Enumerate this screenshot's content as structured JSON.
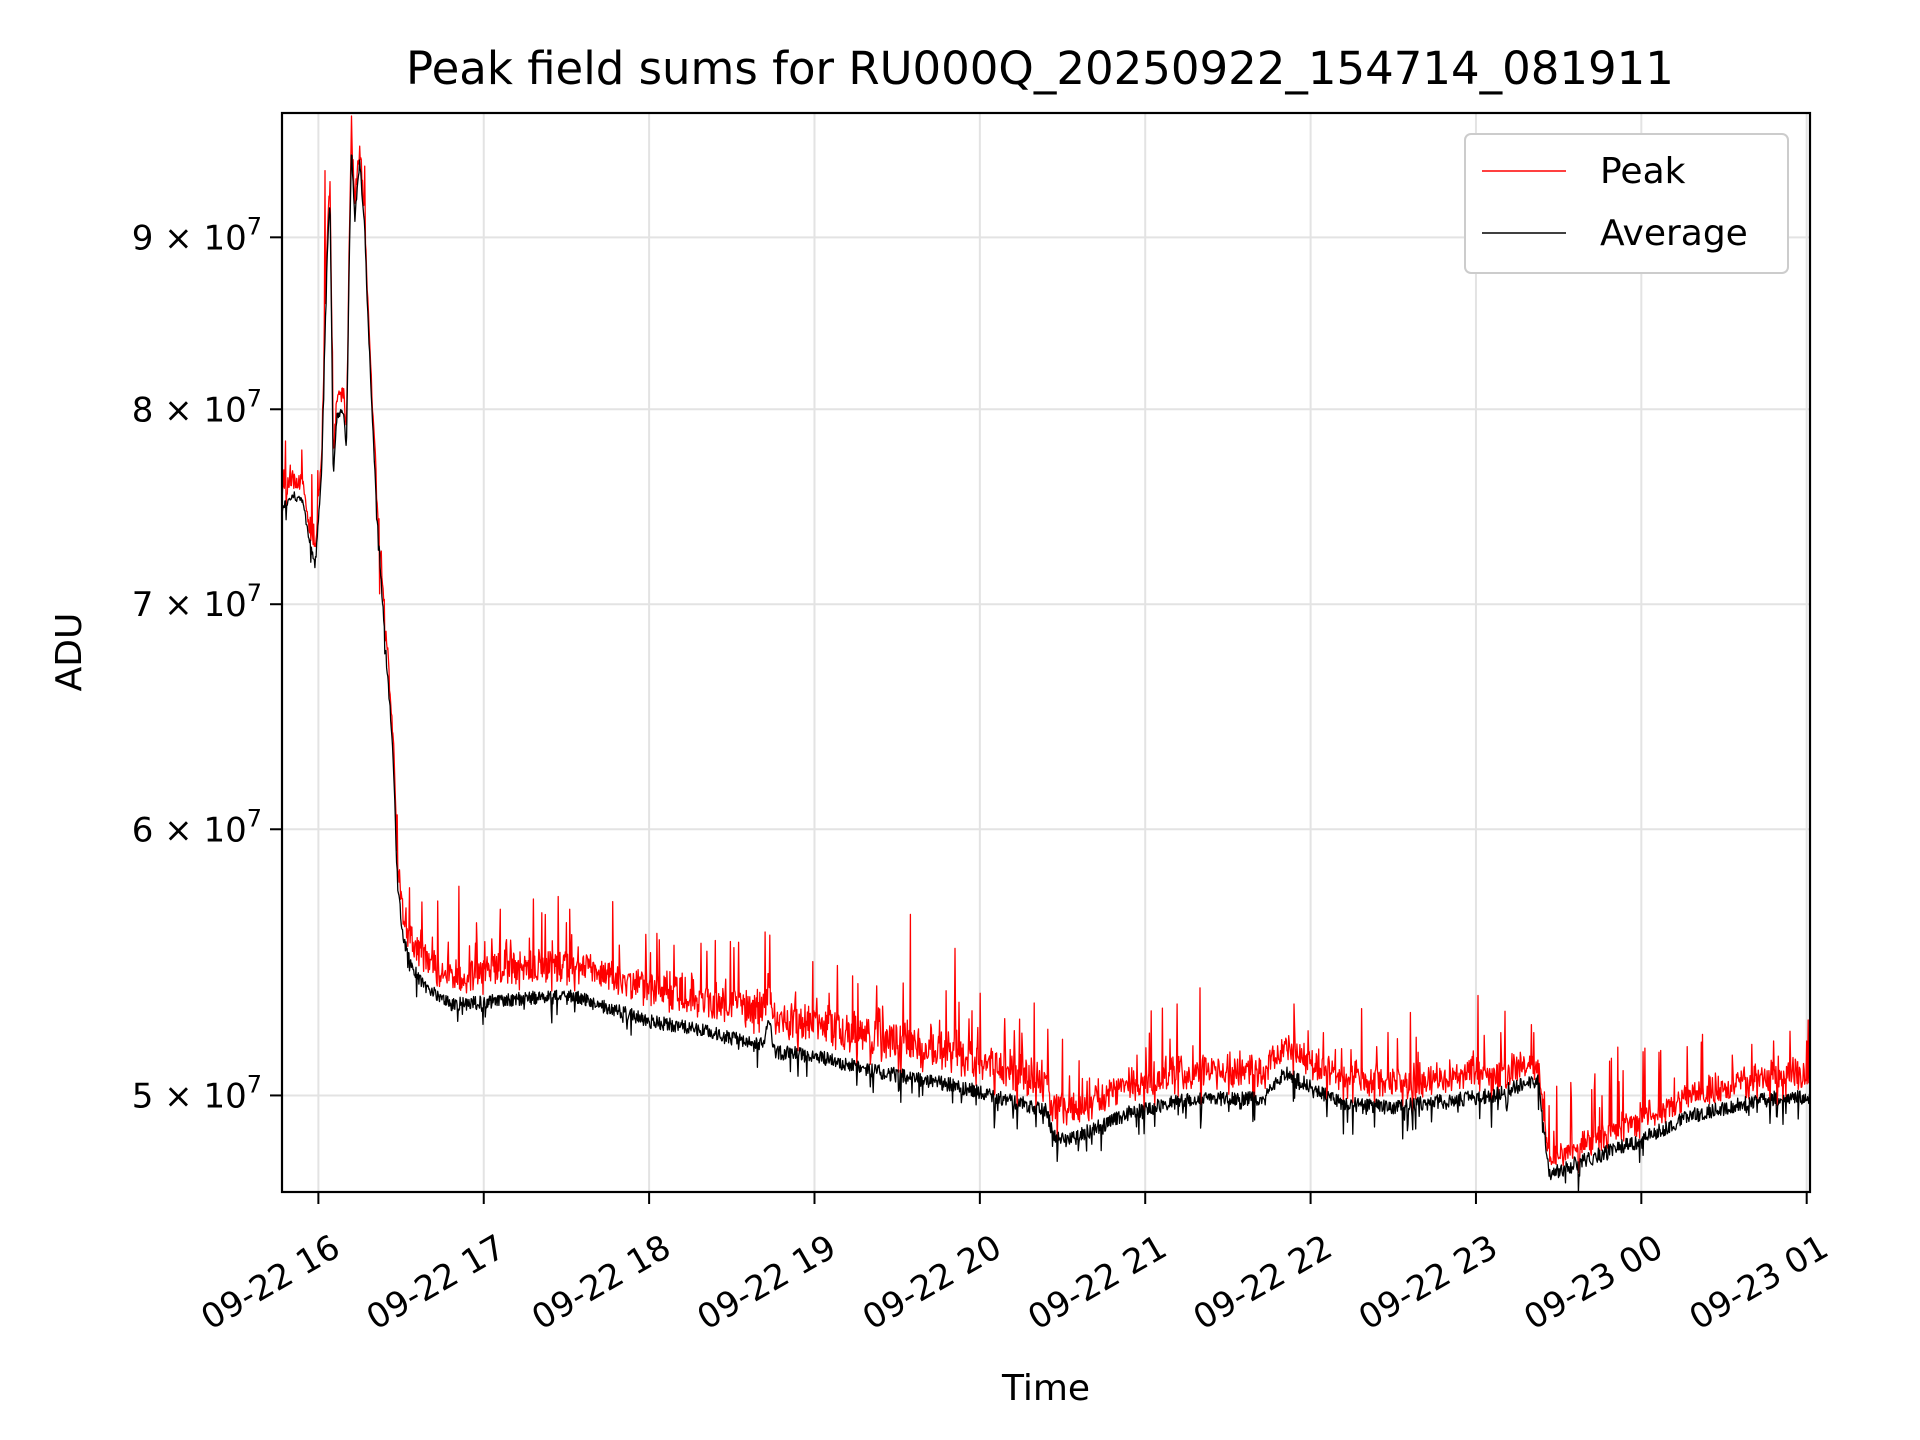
{
  "chart_data": {
    "type": "line",
    "title": "Peak field sums for RU000Q_20250922_154714_081911",
    "xlabel": "Time",
    "ylabel": "ADU",
    "yscale": "log",
    "ylim": [
      46800000,
      98000000
    ],
    "xlim_hours": [
      15.78,
      25.02
    ],
    "grid": true,
    "legend_position": "top-right",
    "x_ticks": [
      {
        "hour": 16,
        "label": "09-22 16"
      },
      {
        "hour": 17,
        "label": "09-22 17"
      },
      {
        "hour": 18,
        "label": "09-22 18"
      },
      {
        "hour": 19,
        "label": "09-22 19"
      },
      {
        "hour": 20,
        "label": "09-22 20"
      },
      {
        "hour": 21,
        "label": "09-22 21"
      },
      {
        "hour": 22,
        "label": "09-22 22"
      },
      {
        "hour": 23,
        "label": "09-22 23"
      },
      {
        "hour": 24,
        "label": "09-23 00"
      },
      {
        "hour": 25,
        "label": "09-23 01"
      }
    ],
    "y_ticks": [
      {
        "value": 50000000,
        "mantissa": "5",
        "exponent": "7"
      },
      {
        "value": 60000000,
        "mantissa": "6",
        "exponent": "7"
      },
      {
        "value": 70000000,
        "mantissa": "7",
        "exponent": "7"
      },
      {
        "value": 80000000,
        "mantissa": "8",
        "exponent": "7"
      },
      {
        "value": 90000000,
        "mantissa": "9",
        "exponent": "7"
      }
    ],
    "series": [
      {
        "name": "Peak",
        "color": "#ff0000",
        "offset": [
          [
            15.78,
            900000
          ],
          [
            15.9,
            800000
          ],
          [
            16.2,
            1000000
          ],
          [
            16.5,
            900000
          ],
          [
            17.0,
            1100000
          ],
          [
            18.0,
            1200000
          ],
          [
            19.0,
            1200000
          ],
          [
            20.0,
            1100000
          ],
          [
            20.5,
            1000000
          ],
          [
            21.0,
            1000000
          ],
          [
            22.0,
            900000
          ],
          [
            23.0,
            800000
          ],
          [
            23.45,
            500000
          ],
          [
            24.0,
            700000
          ],
          [
            25.02,
            800000
          ]
        ],
        "spikes": [
          [
            15.83,
            77000000
          ],
          [
            15.9,
            77800000
          ],
          [
            15.96,
            76500000
          ],
          [
            16.04,
            94200000
          ],
          [
            16.07,
            93500000
          ],
          [
            16.2,
            97800000
          ],
          [
            16.25,
            95800000
          ],
          [
            16.28,
            94500000
          ],
          [
            16.37,
            70500000
          ],
          [
            16.45,
            64100000
          ],
          [
            16.5,
            57500000
          ],
          [
            16.62,
            56000000
          ],
          [
            16.85,
            57700000
          ],
          [
            16.95,
            55500000
          ],
          [
            17.1,
            56800000
          ],
          [
            17.3,
            57200000
          ],
          [
            17.45,
            57300000
          ],
          [
            17.52,
            56800000
          ],
          [
            17.78,
            57100000
          ],
          [
            18.4,
            55600000
          ],
          [
            18.73,
            55800000
          ],
          [
            18.99,
            54800000
          ],
          [
            19.58,
            56600000
          ],
          [
            19.85,
            55300000
          ],
          [
            20.15,
            52700000
          ],
          [
            20.6,
            51200000
          ],
          [
            20.95,
            51400000
          ],
          [
            21.35,
            51400000
          ],
          [
            21.75,
            51400000
          ],
          [
            21.85,
            52000000
          ],
          [
            22.15,
            51600000
          ],
          [
            22.4,
            51700000
          ],
          [
            22.65,
            51500000
          ],
          [
            23.05,
            52100000
          ],
          [
            23.15,
            52200000
          ],
          [
            23.35,
            52200000
          ],
          [
            23.7,
            50200000
          ],
          [
            24.2,
            50600000
          ],
          [
            24.55,
            51400000
          ],
          [
            24.8,
            51900000
          ],
          [
            25.0,
            51900000
          ]
        ]
      },
      {
        "name": "Average",
        "color": "#000000",
        "base": [
          [
            15.78,
            74800000
          ],
          [
            15.85,
            75400000
          ],
          [
            15.9,
            75200000
          ],
          [
            15.95,
            73000000
          ],
          [
            15.98,
            71800000
          ],
          [
            16.02,
            76500000
          ],
          [
            16.05,
            88000000
          ],
          [
            16.07,
            92500000
          ],
          [
            16.09,
            76500000
          ],
          [
            16.11,
            79500000
          ],
          [
            16.15,
            80000000
          ],
          [
            16.17,
            78000000
          ],
          [
            16.19,
            90500000
          ],
          [
            16.2,
            95800000
          ],
          [
            16.22,
            91000000
          ],
          [
            16.25,
            94800000
          ],
          [
            16.28,
            90500000
          ],
          [
            16.3,
            85000000
          ],
          [
            16.35,
            75000000
          ],
          [
            16.4,
            68500000
          ],
          [
            16.45,
            63500000
          ],
          [
            16.48,
            57500000
          ],
          [
            16.52,
            55500000
          ],
          [
            16.6,
            54200000
          ],
          [
            16.7,
            53600000
          ],
          [
            16.8,
            53200000
          ],
          [
            17.0,
            53300000
          ],
          [
            17.2,
            53400000
          ],
          [
            17.5,
            53600000
          ],
          [
            17.8,
            53000000
          ],
          [
            18.0,
            52600000
          ],
          [
            18.3,
            52300000
          ],
          [
            18.5,
            52000000
          ],
          [
            18.7,
            51800000
          ],
          [
            18.72,
            52800000
          ],
          [
            18.76,
            51500000
          ],
          [
            19.0,
            51400000
          ],
          [
            19.3,
            50900000
          ],
          [
            19.6,
            50600000
          ],
          [
            19.8,
            50400000
          ],
          [
            20.0,
            50100000
          ],
          [
            20.2,
            49800000
          ],
          [
            20.4,
            49500000
          ],
          [
            20.45,
            48600000
          ],
          [
            20.55,
            48500000
          ],
          [
            20.7,
            48900000
          ],
          [
            20.9,
            49400000
          ],
          [
            21.2,
            49800000
          ],
          [
            21.5,
            49900000
          ],
          [
            21.7,
            49900000
          ],
          [
            21.85,
            50800000
          ],
          [
            22.0,
            50300000
          ],
          [
            22.2,
            49700000
          ],
          [
            22.5,
            49600000
          ],
          [
            22.8,
            49800000
          ],
          [
            23.1,
            50000000
          ],
          [
            23.3,
            50400000
          ],
          [
            23.38,
            50500000
          ],
          [
            23.42,
            48500000
          ],
          [
            23.45,
            47200000
          ],
          [
            23.5,
            47500000
          ],
          [
            23.7,
            47900000
          ],
          [
            24.0,
            48500000
          ],
          [
            24.3,
            49300000
          ],
          [
            24.6,
            49700000
          ],
          [
            24.8,
            49900000
          ],
          [
            25.02,
            49950000
          ]
        ]
      }
    ]
  }
}
